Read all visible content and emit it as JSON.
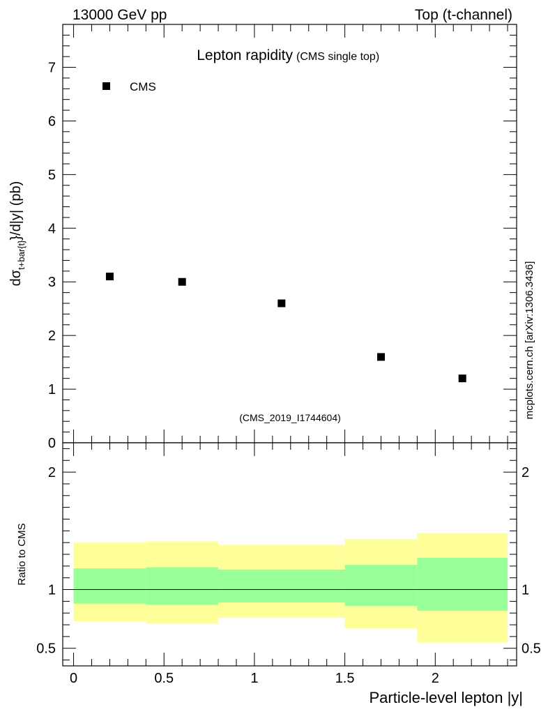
{
  "header": {
    "left": "13000 GeV pp",
    "right": "Top (t-channel)"
  },
  "side_label": "mcplots.cern.ch [arXiv:1306.3436]",
  "colors": {
    "band_inner": "#99ff99",
    "band_outer": "#ffff99",
    "marker": "#000000",
    "analysis_label": "#999999",
    "side_label": "#808080"
  },
  "chart_data": [
    {
      "type": "scatter",
      "title": "Lepton rapidity",
      "subtitle": "(CMS single top)",
      "analysis": "(CMS_2019_I1744604)",
      "ylabel_main": "dσ",
      "ylabel_sub": "t+bar{t}",
      "ylabel_rest": "}/d|y|  (pb)",
      "legend": {
        "position": "top-left",
        "entries": [
          "CMS"
        ]
      },
      "xlim": [
        -0.06,
        2.45
      ],
      "ylim": [
        0,
        7.8
      ],
      "yticks": [
        {
          "v": 0,
          "label": "0"
        },
        {
          "v": 1,
          "label": "1"
        },
        {
          "v": 2,
          "label": "2"
        },
        {
          "v": 3,
          "label": "3"
        },
        {
          "v": 4,
          "label": "4"
        },
        {
          "v": 5,
          "label": "5"
        },
        {
          "v": 6,
          "label": "6"
        },
        {
          "v": 7,
          "label": "7"
        }
      ],
      "series": [
        {
          "name": "CMS",
          "x": [
            0.2,
            0.6,
            1.15,
            1.7,
            2.15
          ],
          "y": [
            3.1,
            3.0,
            2.6,
            1.6,
            1.2
          ]
        }
      ]
    },
    {
      "type": "area",
      "ylabel": "Ratio to CMS",
      "xlabel": "Particle-level lepton |y|",
      "xlim": [
        -0.06,
        2.45
      ],
      "ylim": [
        0.35,
        2.25
      ],
      "reference_line": 1,
      "xticks": [
        {
          "v": 0,
          "label": "0"
        },
        {
          "v": 0.5,
          "label": "0.5"
        },
        {
          "v": 1,
          "label": "1"
        },
        {
          "v": 1.5,
          "label": "1.5"
        },
        {
          "v": 2,
          "label": "2"
        }
      ],
      "yticks": [
        {
          "v": 0.5,
          "label": "0.5"
        },
        {
          "v": 1,
          "label": "1"
        },
        {
          "v": 2,
          "label": "2"
        }
      ],
      "bins": [
        {
          "x0": 0.0,
          "x1": 0.4,
          "inner": [
            0.88,
            1.18
          ],
          "outer": [
            0.73,
            1.4
          ]
        },
        {
          "x0": 0.4,
          "x1": 0.8,
          "inner": [
            0.87,
            1.19
          ],
          "outer": [
            0.71,
            1.41
          ]
        },
        {
          "x0": 0.8,
          "x1": 1.5,
          "inner": [
            0.89,
            1.17
          ],
          "outer": [
            0.76,
            1.38
          ]
        },
        {
          "x0": 1.5,
          "x1": 1.9,
          "inner": [
            0.86,
            1.21
          ],
          "outer": [
            0.67,
            1.43
          ]
        },
        {
          "x0": 1.9,
          "x1": 2.4,
          "inner": [
            0.82,
            1.27
          ],
          "outer": [
            0.55,
            1.48
          ]
        }
      ]
    }
  ]
}
